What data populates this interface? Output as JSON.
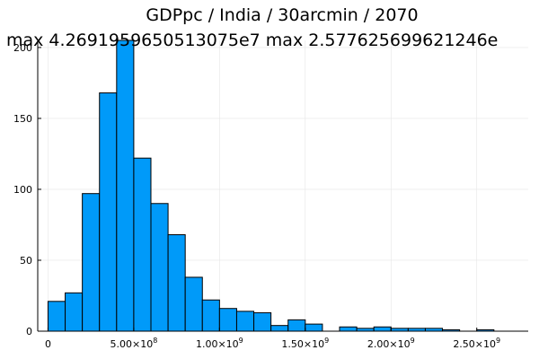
{
  "chart_data": {
    "type": "bar",
    "title": "GDPpc / India / 30arcmin / 2070",
    "subtitle": "max 4.2691959650513075e7  max 2.577625699621246e",
    "xlabel": "",
    "ylabel": "",
    "xlim": [
      -60000000,
      2800000000
    ],
    "ylim": [
      0,
      205
    ],
    "grid": true,
    "legend": "none",
    "bar_color": "#009AF9",
    "bins": [
      {
        "x0": 0,
        "x1": 100000000,
        "count": 21
      },
      {
        "x0": 100000000,
        "x1": 200000000,
        "count": 27
      },
      {
        "x0": 200000000,
        "x1": 300000000,
        "count": 97
      },
      {
        "x0": 300000000,
        "x1": 400000000,
        "count": 168
      },
      {
        "x0": 400000000,
        "x1": 500000000,
        "count": 205
      },
      {
        "x0": 500000000,
        "x1": 600000000,
        "count": 122
      },
      {
        "x0": 600000000,
        "x1": 700000000,
        "count": 90
      },
      {
        "x0": 700000000,
        "x1": 800000000,
        "count": 68
      },
      {
        "x0": 800000000,
        "x1": 900000000,
        "count": 38
      },
      {
        "x0": 900000000,
        "x1": 1000000000,
        "count": 22
      },
      {
        "x0": 1000000000,
        "x1": 1100000000,
        "count": 16
      },
      {
        "x0": 1100000000,
        "x1": 1200000000,
        "count": 14
      },
      {
        "x0": 1200000000,
        "x1": 1300000000,
        "count": 13
      },
      {
        "x0": 1300000000,
        "x1": 1400000000,
        "count": 4
      },
      {
        "x0": 1400000000,
        "x1": 1500000000,
        "count": 8
      },
      {
        "x0": 1500000000,
        "x1": 1600000000,
        "count": 5
      },
      {
        "x0": 1700000000,
        "x1": 1800000000,
        "count": 3
      },
      {
        "x0": 1800000000,
        "x1": 1900000000,
        "count": 2
      },
      {
        "x0": 1900000000,
        "x1": 2000000000,
        "count": 3
      },
      {
        "x0": 2000000000,
        "x1": 2100000000,
        "count": 2
      },
      {
        "x0": 2100000000,
        "x1": 2200000000,
        "count": 2
      },
      {
        "x0": 2200000000,
        "x1": 2300000000,
        "count": 2
      },
      {
        "x0": 2300000000,
        "x1": 2400000000,
        "count": 1
      },
      {
        "x0": 2500000000,
        "x1": 2600000000,
        "count": 1
      }
    ],
    "x_ticks": [
      {
        "value": 0,
        "mantissa": "0",
        "exponent": ""
      },
      {
        "value": 500000000,
        "mantissa": "5.00×10",
        "exponent": "8"
      },
      {
        "value": 1000000000,
        "mantissa": "1.00×10",
        "exponent": "9"
      },
      {
        "value": 1500000000,
        "mantissa": "1.50×10",
        "exponent": "9"
      },
      {
        "value": 2000000000,
        "mantissa": "2.00×10",
        "exponent": "9"
      },
      {
        "value": 2500000000,
        "mantissa": "2.50×10",
        "exponent": "9"
      }
    ],
    "y_ticks": [
      {
        "value": 0,
        "label": "0"
      },
      {
        "value": 50,
        "label": "50"
      },
      {
        "value": 100,
        "label": "100"
      },
      {
        "value": 150,
        "label": "150"
      },
      {
        "value": 200,
        "label": "200"
      }
    ]
  }
}
